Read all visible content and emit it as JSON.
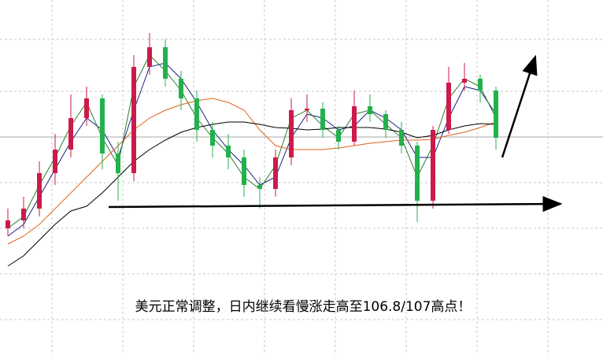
{
  "chart_data": {
    "type": "candlestick",
    "title": "美元正常调整，日内继续看慢涨走高至106.8/107高点！",
    "ylim": [
      0,
      450
    ],
    "up_color": "#cc1a4a",
    "down_color": "#22b14c",
    "open": [
      160,
      170,
      185,
      230,
      260,
      300,
      325,
      255,
      230,
      365,
      390,
      350,
      325,
      285,
      265,
      250,
      215,
      210,
      250,
      310,
      312,
      285,
      270,
      315,
      305,
      285,
      265,
      195,
      285,
      345,
      350,
      335
    ],
    "high": [
      185,
      200,
      245,
      280,
      330,
      340,
      330,
      270,
      380,
      408,
      400,
      360,
      335,
      295,
      280,
      260,
      225,
      260,
      325,
      330,
      320,
      290,
      335,
      330,
      310,
      295,
      270,
      290,
      365,
      370,
      355,
      340
    ],
    "low": [
      150,
      160,
      175,
      215,
      250,
      290,
      235,
      195,
      220,
      355,
      340,
      310,
      270,
      250,
      235,
      200,
      185,
      200,
      240,
      295,
      275,
      260,
      265,
      295,
      275,
      255,
      168,
      185,
      280,
      335,
      320,
      260
    ],
    "close": [
      170,
      185,
      230,
      260,
      300,
      325,
      255,
      230,
      365,
      390,
      350,
      325,
      285,
      265,
      250,
      215,
      210,
      250,
      310,
      312,
      285,
      270,
      315,
      305,
      285,
      265,
      195,
      285,
      345,
      350,
      335,
      275
    ],
    "lines": [
      {
        "color": "#1a237e",
        "values": [
          150,
          165,
          200,
          235,
          270,
          300,
          285,
          250,
          310,
          365,
          370,
          350,
          320,
          285,
          260,
          240,
          215,
          225,
          275,
          305,
          300,
          285,
          290,
          310,
          300,
          285,
          250,
          250,
          300,
          340,
          335,
          305
        ]
      },
      {
        "color": "#2e7d32",
        "values": [
          160,
          175,
          215,
          250,
          290,
          320,
          275,
          240,
          340,
          380,
          360,
          335,
          300,
          275,
          255,
          225,
          210,
          240,
          300,
          310,
          290,
          275,
          305,
          310,
          292,
          275,
          225,
          265,
          325,
          350,
          340,
          300
        ]
      },
      {
        "color": "#e0621b",
        "values": [
          140,
          150,
          165,
          185,
          205,
          225,
          245,
          265,
          285,
          300,
          310,
          317,
          322,
          325,
          320,
          310,
          285,
          265,
          260,
          260,
          260,
          262,
          265,
          268,
          270,
          272,
          272,
          273,
          278,
          282,
          288,
          295
        ]
      },
      {
        "color": "#000000",
        "values": [
          112,
          125,
          145,
          165,
          182,
          188,
          205,
          225,
          245,
          260,
          272,
          282,
          288,
          292,
          295,
          295,
          292,
          288,
          287,
          285,
          286,
          288,
          288,
          288,
          286,
          282,
          275,
          278,
          285,
          290,
          293,
          292
        ]
      }
    ]
  }
}
